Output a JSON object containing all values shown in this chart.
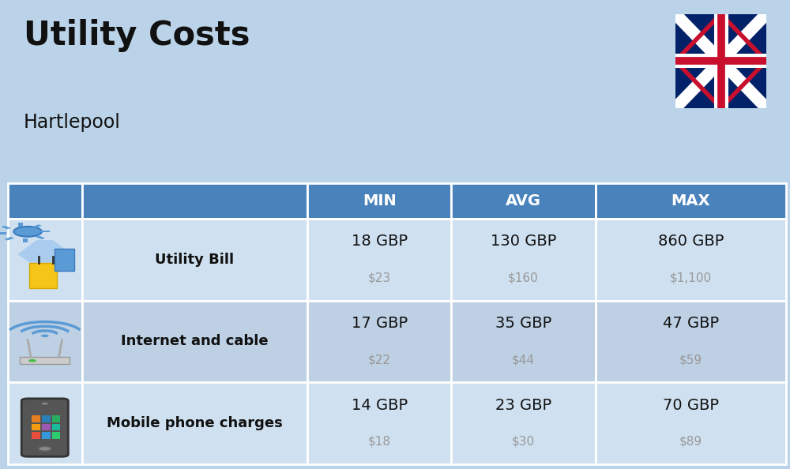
{
  "title": "Utility Costs",
  "subtitle": "Hartlepool",
  "background_color": "#bad3e8",
  "header_bg_color": "#4a82bc",
  "header_text_color": "#ffffff",
  "row_bg_color_even": "#cfe0f0",
  "row_bg_color_odd": "#bdd0e4",
  "col_headers": [
    "MIN",
    "AVG",
    "MAX"
  ],
  "rows": [
    {
      "label": "Utility Bill",
      "min_gbp": "18 GBP",
      "min_usd": "$23",
      "avg_gbp": "130 GBP",
      "avg_usd": "$160",
      "max_gbp": "860 GBP",
      "max_usd": "$1,100",
      "icon": "utility"
    },
    {
      "label": "Internet and cable",
      "min_gbp": "17 GBP",
      "min_usd": "$22",
      "avg_gbp": "35 GBP",
      "avg_usd": "$44",
      "max_gbp": "47 GBP",
      "max_usd": "$59",
      "icon": "internet"
    },
    {
      "label": "Mobile phone charges",
      "min_gbp": "14 GBP",
      "min_usd": "$18",
      "avg_gbp": "23 GBP",
      "avg_usd": "$30",
      "max_gbp": "70 GBP",
      "max_usd": "$89",
      "icon": "mobile"
    }
  ],
  "text_color_dark": "#111111",
  "text_color_usd": "#999999",
  "flag_blue": "#012169",
  "flag_red": "#C8102E",
  "flag_white": "#ffffff"
}
